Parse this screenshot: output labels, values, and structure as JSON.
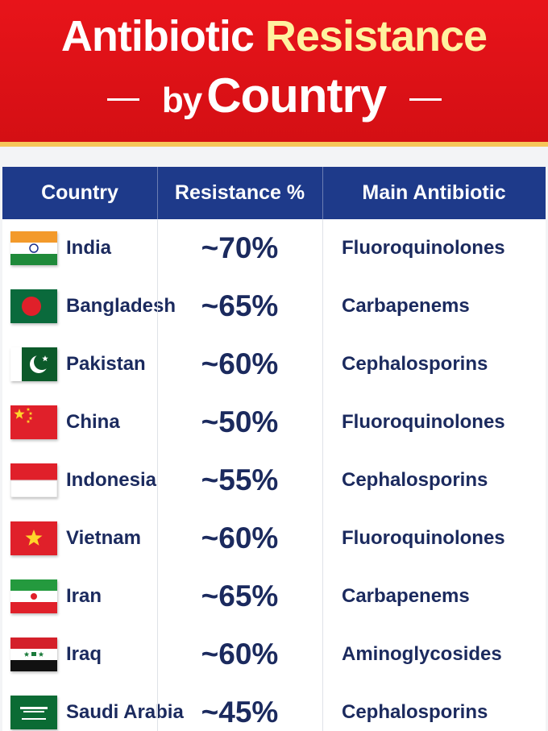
{
  "header": {
    "title_part1": "Antibiotic",
    "title_part2": "Resistance",
    "subtitle_part1": "by",
    "subtitle_part2": "Country"
  },
  "table": {
    "columns": [
      "Country",
      "Resistance %",
      "Main Antibiotic"
    ],
    "rows": [
      [
        "India",
        "~70%",
        "Fluoroquinolones"
      ],
      [
        "Bangladesh",
        "~65%",
        "Carbapenems"
      ],
      [
        "Pakistan",
        "~60%",
        "Cephalosporins"
      ],
      [
        "China",
        "~50%",
        "Fluoroquinolones"
      ],
      [
        "Indonesia",
        "~55%",
        "Cephalosporins"
      ],
      [
        "Vietnam",
        "~60%",
        "Fluoroquinolones"
      ],
      [
        "Iran",
        "~65%",
        "Carbapenems"
      ],
      [
        "Iraq",
        "~60%",
        "Aminoglycosides"
      ],
      [
        "Saudi Arabia",
        "~45%",
        "Cephalosporins"
      ]
    ]
  }
}
